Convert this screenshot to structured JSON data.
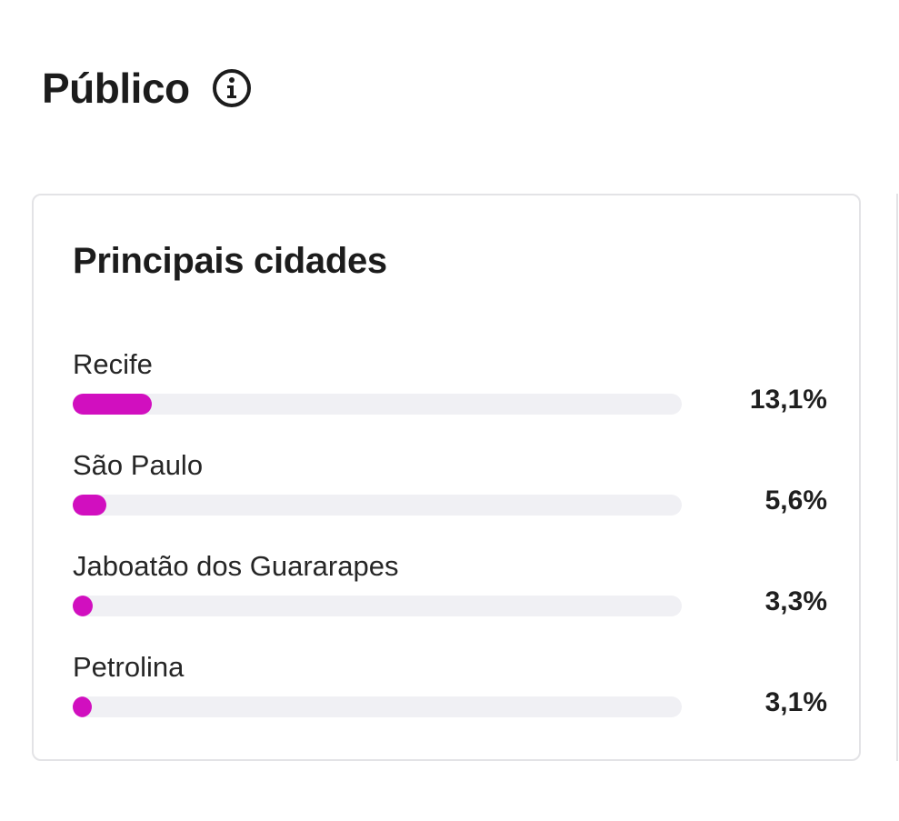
{
  "section": {
    "title": "Público",
    "info_icon": "info-circle-icon"
  },
  "card": {
    "title": "Principais cidades",
    "accent_color": "#d10fbf",
    "track_color": "#f0f0f4",
    "cities": [
      {
        "label": "Recife",
        "value_text": "13,1%",
        "fill_fraction": 0.13
      },
      {
        "label": "São Paulo",
        "value_text": "5,6%",
        "fill_fraction": 0.055
      },
      {
        "label": "Jaboatão dos Guararapes",
        "value_text": "3,3%",
        "fill_fraction": 0.033
      },
      {
        "label": "Petrolina",
        "value_text": "3,1%",
        "fill_fraction": 0.031
      }
    ]
  }
}
